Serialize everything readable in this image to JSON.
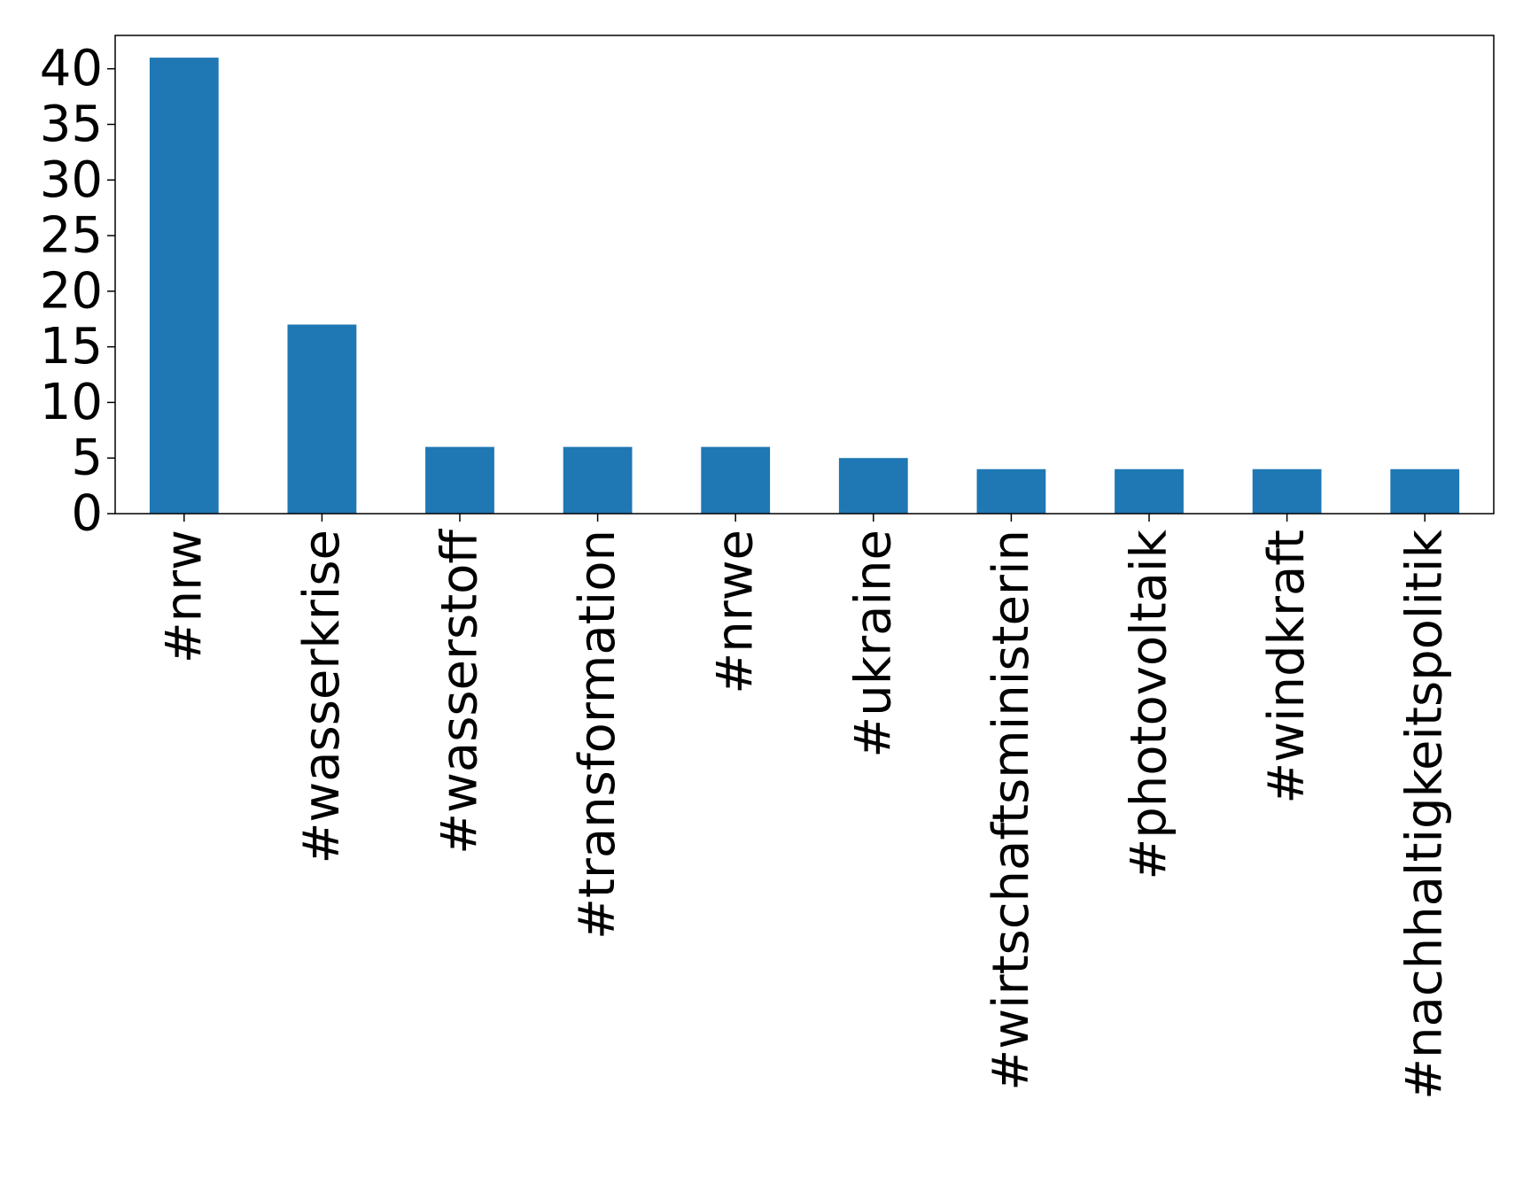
{
  "chart_data": {
    "type": "bar",
    "categories": [
      "#nrw",
      "#wasserkrise",
      "#wasserstoff",
      "#transformation",
      "#nrwe",
      "#ukraine",
      "#wirtschaftsministerin",
      "#photovoltaik",
      "#windkraft",
      "#nachhaltigkeitspolitik"
    ],
    "values": [
      41,
      17,
      6,
      6,
      6,
      5,
      4,
      4,
      4,
      4
    ],
    "title": "",
    "xlabel": "",
    "ylabel": "",
    "ylim": [
      0,
      43
    ],
    "yticks": [
      0,
      5,
      10,
      15,
      20,
      25,
      30,
      35,
      40
    ],
    "bar_color": "#1f77b4",
    "grid": false,
    "legend": false
  }
}
